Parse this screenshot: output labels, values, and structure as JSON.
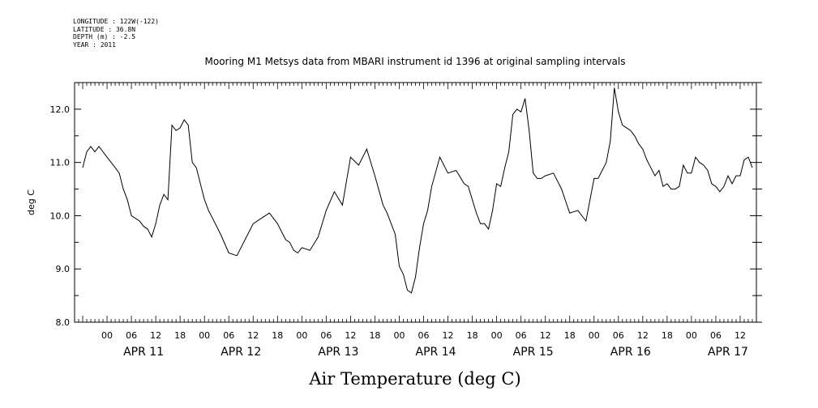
{
  "meta": {
    "longitude": "LONGITUDE : 122W(-122)",
    "latitude": "LATITUDE : 36.8N",
    "depth": "DEPTH (m) : -2.5",
    "year": "YEAR : 2011"
  },
  "chart_data": {
    "type": "line",
    "title": "Mooring M1 Metsys data from MBARI instrument id 1396 at original sampling intervals",
    "xlabel": "Air Temperature (deg C)",
    "ylabel": "deg C",
    "ylim": [
      8.0,
      12.5
    ],
    "yticks": [
      8.0,
      9.0,
      10.0,
      11.0,
      12.0
    ],
    "ytick_labels": [
      "8.0",
      "9.0",
      "10.0",
      "11.0",
      "12.0"
    ],
    "xlim_hours": [
      -8,
      160
    ],
    "x_hour_ticks": [
      0,
      6,
      12,
      18
    ],
    "x_hour_tick_labels": [
      "00",
      "06",
      "12",
      "18"
    ],
    "days": [
      "APR 11",
      "APR 12",
      "APR 13",
      "APR 14",
      "APR 15",
      "APR 16",
      "APR 17"
    ],
    "grid": false,
    "series": [
      {
        "x": [
          -6,
          -5,
          -4,
          -3,
          -2,
          -1,
          0,
          1,
          2,
          3,
          4,
          5,
          6,
          7,
          8,
          9,
          10,
          11,
          12,
          13,
          14,
          15,
          16,
          17,
          18,
          19,
          20,
          21,
          22,
          23,
          24,
          25,
          26,
          27,
          28,
          30,
          32,
          34,
          36,
          38,
          40,
          42,
          44,
          45,
          46,
          47,
          48,
          50,
          52,
          54,
          56,
          58,
          60,
          62,
          64,
          66,
          68,
          69,
          70,
          71,
          72,
          73,
          74,
          75,
          76,
          77,
          78,
          79,
          80,
          82,
          84,
          86,
          88,
          89,
          90,
          91,
          92,
          93,
          94,
          95,
          96,
          97,
          98,
          99,
          100,
          101,
          102,
          103,
          104,
          105,
          106,
          107,
          108,
          110,
          112,
          114,
          116,
          118,
          120,
          121,
          122,
          123,
          124,
          125,
          126,
          127,
          128,
          129,
          130,
          131,
          132,
          133,
          134,
          135,
          136,
          137,
          138,
          139,
          140,
          141,
          142,
          143,
          144,
          145,
          146,
          147,
          148,
          149,
          150,
          151,
          152,
          153,
          154,
          155,
          156,
          157,
          158,
          159
        ],
        "y": [
          10.9,
          11.2,
          11.3,
          11.2,
          11.3,
          11.2,
          11.1,
          11.0,
          10.9,
          10.8,
          10.5,
          10.3,
          10.0,
          9.95,
          9.9,
          9.8,
          9.75,
          9.6,
          9.85,
          10.2,
          10.4,
          10.3,
          11.7,
          11.6,
          11.65,
          11.8,
          11.7,
          11.0,
          10.9,
          10.6,
          10.3,
          10.1,
          9.95,
          9.8,
          9.65,
          9.3,
          9.25,
          9.55,
          9.85,
          9.95,
          10.05,
          9.85,
          9.55,
          9.5,
          9.35,
          9.3,
          9.4,
          9.35,
          9.6,
          10.1,
          10.45,
          10.2,
          11.1,
          10.95,
          11.25,
          10.75,
          10.2,
          10.05,
          9.85,
          9.65,
          9.05,
          8.9,
          8.6,
          8.55,
          8.85,
          9.4,
          9.85,
          10.1,
          10.55,
          11.1,
          10.8,
          10.85,
          10.6,
          10.55,
          10.3,
          10.05,
          9.85,
          9.85,
          9.75,
          10.1,
          10.6,
          10.55,
          10.9,
          11.2,
          11.9,
          12.0,
          11.95,
          12.2,
          11.6,
          10.8,
          10.7,
          10.7,
          10.75,
          10.8,
          10.5,
          10.05,
          10.1,
          9.9,
          10.7,
          10.7,
          10.85,
          11.0,
          11.4,
          12.4,
          11.95,
          11.7,
          11.65,
          11.6,
          11.5,
          11.35,
          11.25,
          11.05,
          10.9,
          10.75,
          10.85,
          10.55,
          10.6,
          10.5,
          10.5,
          10.55,
          10.95,
          10.8,
          10.8,
          11.1,
          11.0,
          10.95,
          10.85,
          10.6,
          10.55,
          10.45,
          10.55,
          10.75,
          10.6,
          10.75,
          10.75,
          11.05,
          11.1,
          10.9
        ]
      }
    ]
  }
}
